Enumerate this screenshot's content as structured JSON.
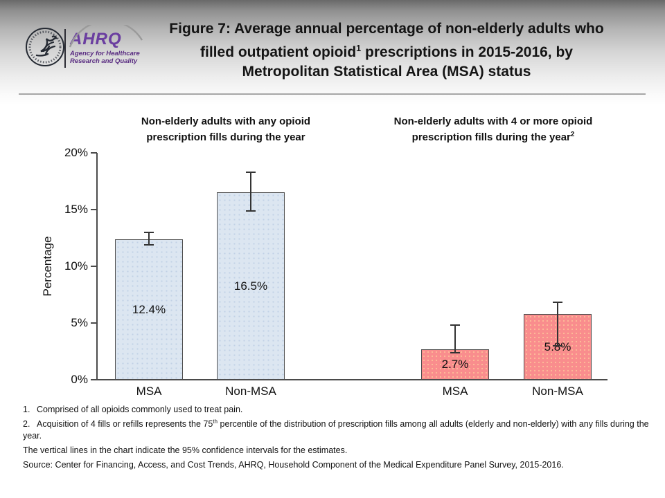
{
  "logo": {
    "brand": "AHRQ",
    "subtitle_line1": "Agency for Healthcare",
    "subtitle_line2": "Research and Quality",
    "brand_color": "#6b3fa0"
  },
  "title": {
    "line1": "Figure 7: Average annual percentage of non-elderly adults who",
    "line2_pre": "filled outpatient opioid",
    "line2_sup": "1",
    "line2_post": " prescriptions in 2015-2016, by",
    "line3": "Metropolitan Statistical Area (MSA) status"
  },
  "chart_data": {
    "type": "bar",
    "title": "Average annual percentage of non-elderly adults who filled outpatient opioid prescriptions in 2015-2016, by Metropolitan Statistical Area (MSA) status",
    "xlabel": "",
    "ylabel": "Percentage",
    "ylim": [
      0,
      20
    ],
    "yticks": [
      0,
      5,
      10,
      15,
      20
    ],
    "ytick_labels": [
      "0%",
      "5%",
      "10%",
      "15%",
      "20%"
    ],
    "grid": "off",
    "legend": "none",
    "error_bars": "95% confidence intervals",
    "groups": [
      {
        "header_line1": "Non-elderly adults with any opioid",
        "header_line2": "prescription fills during the year",
        "header_sup": "",
        "bar_color": "#dce6f1",
        "categories": [
          "MSA",
          "Non-MSA"
        ],
        "values": [
          12.4,
          16.5
        ],
        "value_labels": [
          "12.4%",
          "16.5%"
        ],
        "ci_low": [
          11.9,
          14.9
        ],
        "ci_high": [
          13.0,
          18.3
        ]
      },
      {
        "header_line1": "Non-elderly adults with 4 or more opioid",
        "header_line2": "prescription fills during the year",
        "header_sup": "2",
        "bar_color": "#f98d8d",
        "categories": [
          "MSA",
          "Non-MSA"
        ],
        "values": [
          2.7,
          5.8
        ],
        "value_labels": [
          "2.7%",
          "5.8%"
        ],
        "ci_low": [
          2.4,
          3.0
        ],
        "ci_high": [
          4.8,
          6.8
        ]
      }
    ]
  },
  "footnotes": [
    {
      "num": "1.",
      "pre": "Comprised of all opioids commonly used to treat pain.",
      "sup": "",
      "post": ""
    },
    {
      "num": "2.",
      "pre": "Acquisition of 4 fills or refills represents the 75",
      "sup": "th",
      "post": " percentile of the distribution of prescription fills among all adults (elderly and non-elderly) with any fills during the year."
    },
    {
      "num": "",
      "pre": "The vertical lines in the chart indicate the 95% confidence intervals for the estimates.",
      "sup": "",
      "post": ""
    },
    {
      "num": "",
      "pre": "Source: Center for Financing, Access, and Cost Trends, AHRQ, Household Component of the Medical Expenditure Panel Survey, 2015-2016.",
      "sup": "",
      "post": ""
    }
  ]
}
